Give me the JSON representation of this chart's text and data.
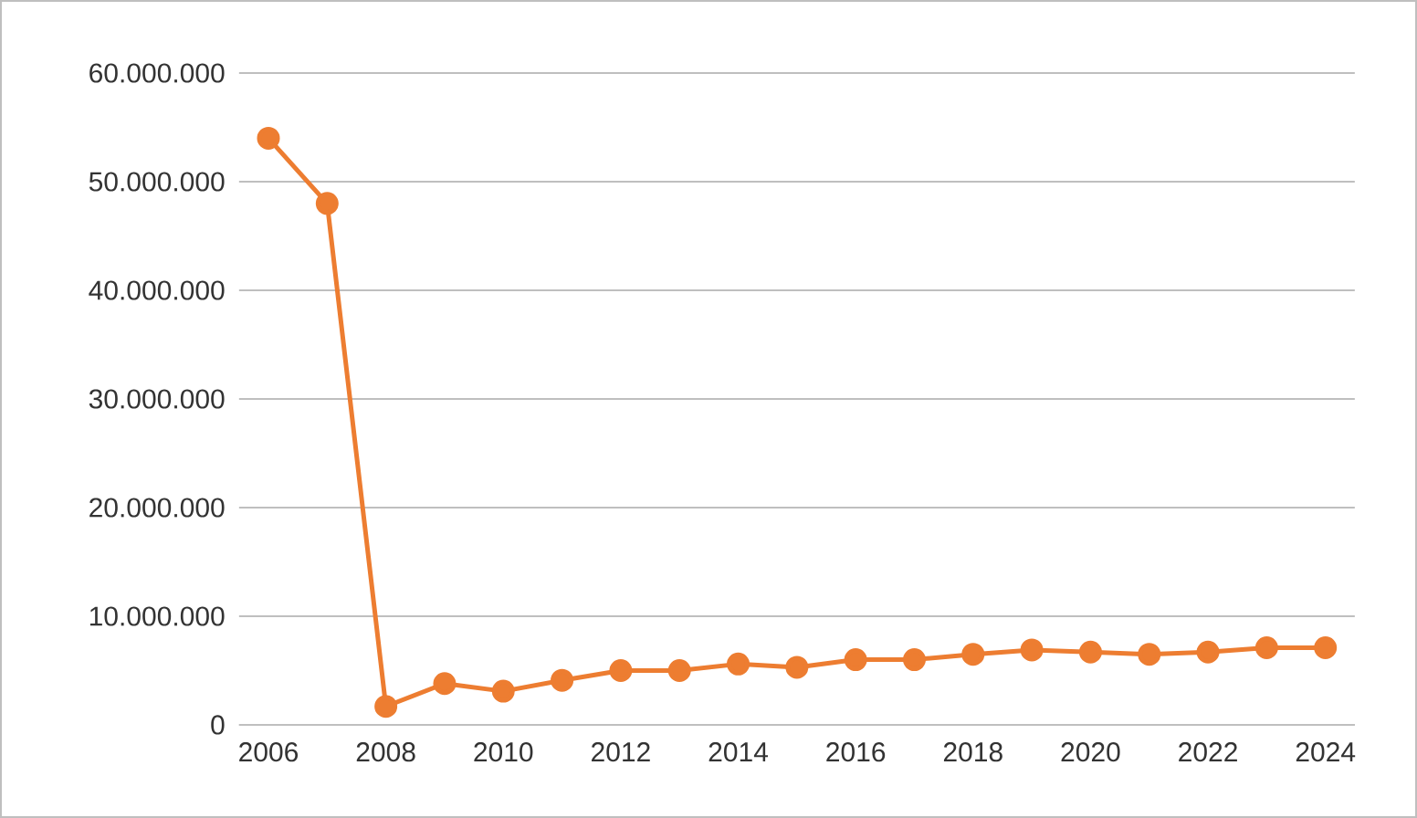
{
  "chart_data": {
    "type": "line",
    "categories": [
      "2006",
      null,
      "2008",
      null,
      "2010",
      null,
      "2012",
      null,
      "2014",
      null,
      "2016",
      null,
      "2018",
      null,
      "2020",
      null,
      "2022",
      null,
      "2024"
    ],
    "series": [
      {
        "color": "#ed7d31",
        "values": [
          54000000,
          48000000,
          1700000,
          3800000,
          3100000,
          4100000,
          5000000,
          5000000,
          5600000,
          5300000,
          6000000,
          6000000,
          6500000,
          6900000,
          6700000,
          6500000,
          6700000,
          7100000,
          7100000
        ]
      }
    ],
    "ylim": [
      0,
      60000000
    ],
    "yticks": [
      {
        "value": 0,
        "label": "0"
      },
      {
        "value": 10000000,
        "label": "10.000.000"
      },
      {
        "value": 20000000,
        "label": "20.000.000"
      },
      {
        "value": 30000000,
        "label": "30.000.000"
      },
      {
        "value": 40000000,
        "label": "40.000.000"
      },
      {
        "value": 50000000,
        "label": "50.000.000"
      },
      {
        "value": 60000000,
        "label": "60.000.000"
      }
    ],
    "grid": "y",
    "marker": "circle",
    "line_style": "solid"
  }
}
